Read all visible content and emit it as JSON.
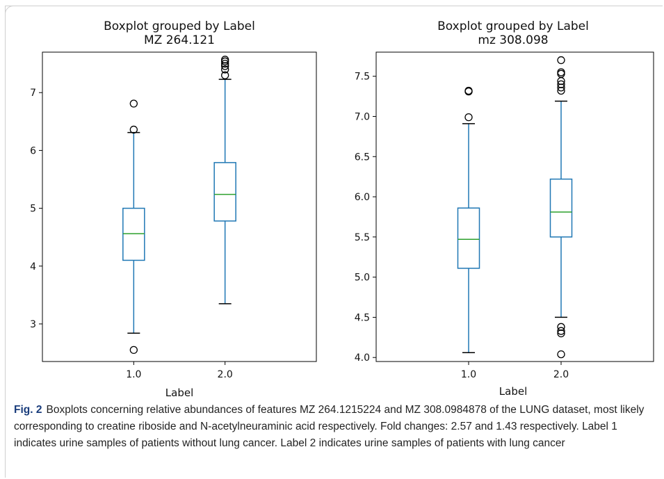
{
  "chart_data": [
    {
      "type": "boxplot",
      "title": "Boxplot grouped by Label",
      "subtitle": "MZ 264.121",
      "xlabel": "Label",
      "ylabel": "",
      "categories": [
        "1.0",
        "2.0"
      ],
      "ylim": [
        2.35,
        7.7
      ],
      "yticks": [
        "3",
        "4",
        "5",
        "6",
        "7"
      ],
      "boxes": [
        {
          "category": "1.0",
          "whisker_low": 2.84,
          "q1": 4.1,
          "median": 4.56,
          "q3": 5.0,
          "whisker_high": 6.31,
          "outliers": [
            2.55,
            6.36,
            6.81
          ]
        },
        {
          "category": "2.0",
          "whisker_low": 3.35,
          "q1": 4.78,
          "median": 5.24,
          "q3": 5.79,
          "whisker_high": 7.23,
          "outliers": [
            7.3,
            7.4,
            7.46,
            7.5,
            7.54,
            7.57
          ]
        }
      ],
      "colors": {
        "box": "#1f77b4",
        "median": "#2ca02c",
        "outlier": "#000000"
      },
      "grid": false
    },
    {
      "type": "boxplot",
      "title": "Boxplot grouped by Label",
      "subtitle": "mz 308.098",
      "xlabel": "Label",
      "ylabel": "",
      "categories": [
        "1.0",
        "2.0"
      ],
      "ylim": [
        3.95,
        7.8
      ],
      "yticks": [
        "4.0",
        "4.5",
        "5.0",
        "5.5",
        "6.0",
        "6.5",
        "7.0",
        "7.5"
      ],
      "boxes": [
        {
          "category": "1.0",
          "whisker_low": 4.06,
          "q1": 5.11,
          "median": 5.47,
          "q3": 5.86,
          "whisker_high": 6.91,
          "outliers": [
            6.99,
            7.31,
            7.32
          ]
        },
        {
          "category": "2.0",
          "whisker_low": 4.5,
          "q1": 5.5,
          "median": 5.81,
          "q3": 6.22,
          "whisker_high": 7.19,
          "outliers": [
            4.04,
            4.3,
            4.33,
            4.38,
            7.32,
            7.36,
            7.4,
            7.44,
            7.53,
            7.55,
            7.7
          ]
        }
      ],
      "colors": {
        "box": "#1f77b4",
        "median": "#2ca02c",
        "outlier": "#000000"
      },
      "grid": false
    }
  ],
  "caption": {
    "figure_label": "Fig. 2",
    "text": "Boxplots concerning relative abundances of features MZ 264.1215224 and MZ 308.0984878 of the LUNG dataset, most likely corresponding to creatine riboside and N-acetylneuraminic acid respectively. Fold changes: 2.57 and 1.43 respectively. Label 1 indicates urine samples of patients without lung cancer. Label 2 indicates urine samples of patients with lung cancer"
  }
}
